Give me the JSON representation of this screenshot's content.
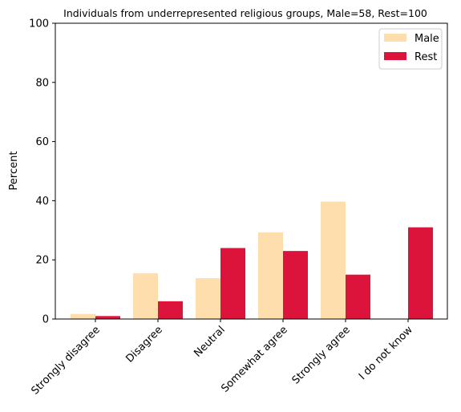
{
  "chart_data": {
    "type": "bar",
    "title": "Individuals from underrepresented religious groups, Male=58, Rest=100",
    "xlabel": "",
    "ylabel": "Percent",
    "ylim": [
      0,
      100
    ],
    "yticks": [
      0,
      20,
      40,
      60,
      80,
      100
    ],
    "categories": [
      "Strongly disagree",
      "Disagree",
      "Neutral",
      "Somewhat agree",
      "Strongly agree",
      "I do not know"
    ],
    "series": [
      {
        "name": "Male",
        "color": "#ffdead",
        "values": [
          1.7,
          15.5,
          13.8,
          29.3,
          39.7,
          0
        ]
      },
      {
        "name": "Rest",
        "color": "#dc143c",
        "values": [
          1.0,
          6.0,
          24.0,
          23.0,
          15.0,
          31.0
        ]
      }
    ],
    "legend": "top-right",
    "grid": false
  }
}
